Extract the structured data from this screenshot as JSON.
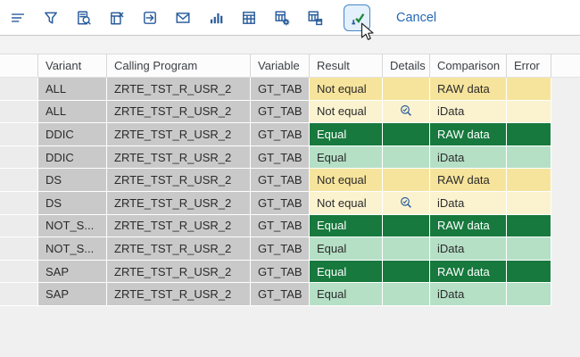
{
  "toolbar": {
    "icons": [
      {
        "name": "sort-icon"
      },
      {
        "name": "filter-icon"
      },
      {
        "name": "find-in-list-icon"
      },
      {
        "name": "export-spreadsheet-icon"
      },
      {
        "name": "export-icon"
      },
      {
        "name": "email-icon"
      },
      {
        "name": "bar-chart-icon"
      },
      {
        "name": "grid-view-icon"
      },
      {
        "name": "grid-settings-icon"
      },
      {
        "name": "grid-save-layout-icon"
      },
      {
        "name": "confirm-check-icon",
        "selected": true
      }
    ],
    "cancel_label": "Cancel"
  },
  "colors": {
    "icon_blue": "#2b5d9c",
    "cancel_blue": "#2368b4",
    "selected_button_border": "#4587c6",
    "selected_button_bg": "#e4f0fb",
    "check_green": "#1e8a3c",
    "gray_cell": "#c9c9c9",
    "selector_cell": "#ececec",
    "yellow_strong": "#f7e49c",
    "yellow_light": "#fbf3d0",
    "green_strong": "#17793d",
    "green_light": "#b5e0c6",
    "page_bg": "#f0f0f0"
  },
  "table": {
    "columns": [
      "Variant",
      "Calling Program",
      "Variable",
      "Result",
      "Details",
      "Comparison",
      "Error"
    ],
    "rows": [
      {
        "variant": "ALL",
        "calling_program": "ZRTE_TST_R_USR_2",
        "variable": "GT_TAB",
        "result": "Not equal",
        "details": "",
        "comparison": "RAW data",
        "error": "",
        "tone": "yellow-strong"
      },
      {
        "variant": "ALL",
        "calling_program": "ZRTE_TST_R_USR_2",
        "variable": "GT_TAB",
        "result": "Not equal",
        "details": "magnifier",
        "comparison": "iData",
        "error": "",
        "tone": "yellow-light"
      },
      {
        "variant": "DDIC",
        "calling_program": "ZRTE_TST_R_USR_2",
        "variable": "GT_TAB",
        "result": "Equal",
        "details": "",
        "comparison": "RAW data",
        "error": "",
        "tone": "green-strong"
      },
      {
        "variant": "DDIC",
        "calling_program": "ZRTE_TST_R_USR_2",
        "variable": "GT_TAB",
        "result": "Equal",
        "details": "",
        "comparison": "iData",
        "error": "",
        "tone": "green-light"
      },
      {
        "variant": "DS",
        "calling_program": "ZRTE_TST_R_USR_2",
        "variable": "GT_TAB",
        "result": "Not equal",
        "details": "",
        "comparison": "RAW data",
        "error": "",
        "tone": "yellow-strong"
      },
      {
        "variant": "DS",
        "calling_program": "ZRTE_TST_R_USR_2",
        "variable": "GT_TAB",
        "result": "Not equal",
        "details": "magnifier",
        "comparison": "iData",
        "error": "",
        "tone": "yellow-light"
      },
      {
        "variant": "NOT_S...",
        "calling_program": "ZRTE_TST_R_USR_2",
        "variable": "GT_TAB",
        "result": "Equal",
        "details": "",
        "comparison": "RAW data",
        "error": "",
        "tone": "green-strong"
      },
      {
        "variant": "NOT_S...",
        "calling_program": "ZRTE_TST_R_USR_2",
        "variable": "GT_TAB",
        "result": "Equal",
        "details": "",
        "comparison": "iData",
        "error": "",
        "tone": "green-light"
      },
      {
        "variant": "SAP",
        "calling_program": "ZRTE_TST_R_USR_2",
        "variable": "GT_TAB",
        "result": "Equal",
        "details": "",
        "comparison": "RAW data",
        "error": "",
        "tone": "green-strong"
      },
      {
        "variant": "SAP",
        "calling_program": "ZRTE_TST_R_USR_2",
        "variable": "GT_TAB",
        "result": "Equal",
        "details": "",
        "comparison": "iData",
        "error": "",
        "tone": "green-light"
      }
    ]
  }
}
